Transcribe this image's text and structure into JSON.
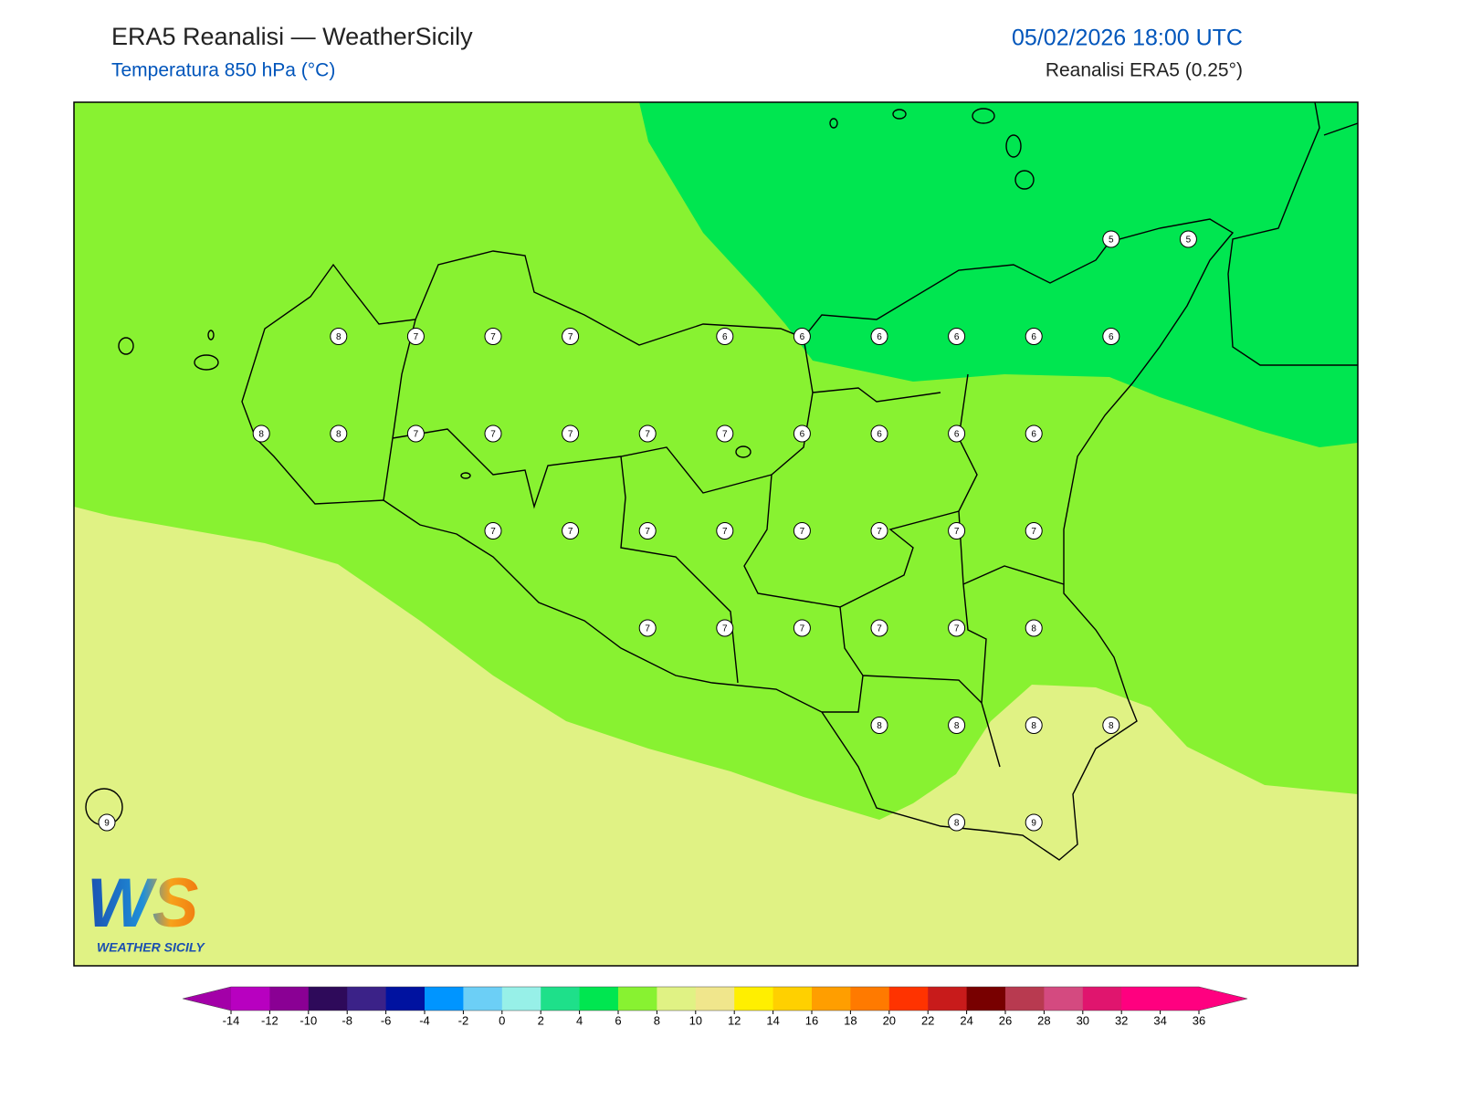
{
  "header": {
    "title": "ERA5 Reanalisi — WeatherSicily",
    "subtitle": "Temperatura 850 hPa (°C)",
    "datetime": "05/02/2026 18:00 UTC",
    "source": "Reanalisi ERA5 (0.25°)"
  },
  "logo": {
    "letters": "WS",
    "name": "WEATHER SICILY"
  },
  "points": [
    [
      null,
      null,
      null,
      null,
      null,
      null,
      null,
      null,
      null,
      null,
      null,
      null,
      null,
      5,
      5
    ],
    [
      null,
      null,
      null,
      8,
      7,
      7,
      7,
      null,
      6,
      6,
      6,
      6,
      6,
      6,
      null
    ],
    [
      null,
      null,
      8,
      8,
      7,
      7,
      7,
      7,
      7,
      6,
      6,
      6,
      6,
      null,
      null
    ],
    [
      null,
      null,
      null,
      null,
      null,
      7,
      7,
      7,
      7,
      7,
      7,
      7,
      7,
      null,
      null
    ],
    [
      null,
      null,
      null,
      null,
      null,
      null,
      null,
      7,
      7,
      7,
      7,
      7,
      8,
      null,
      null
    ],
    [
      null,
      null,
      null,
      null,
      null,
      null,
      null,
      null,
      null,
      null,
      8,
      8,
      8,
      8,
      null
    ],
    [
      9,
      null,
      null,
      null,
      null,
      null,
      null,
      null,
      null,
      null,
      null,
      8,
      9,
      null,
      null
    ]
  ],
  "colorbar": {
    "ticks": [
      -14,
      -12,
      -10,
      -8,
      -6,
      -4,
      -2,
      0,
      2,
      4,
      6,
      8,
      10,
      12,
      14,
      16,
      18,
      20,
      22,
      24,
      26,
      28,
      30,
      32,
      34,
      36
    ],
    "colors": [
      "#b800c0",
      "#8a0094",
      "#2e0a5a",
      "#3b2288",
      "#0012a0",
      "#0095ff",
      "#6ccff6",
      "#97f0e8",
      "#1ee08a",
      "#00e650",
      "#88f231",
      "#e0f284",
      "#f0e68c",
      "#ffef00",
      "#ffd000",
      "#ff9e00",
      "#ff7a00",
      "#ff3300",
      "#c81b1b",
      "#780000",
      "#b83a50",
      "#d44a80",
      "#e0156e",
      "#ff007f",
      "#ff0080"
    ],
    "under": "#a300a8",
    "over": "#ff0080"
  }
}
